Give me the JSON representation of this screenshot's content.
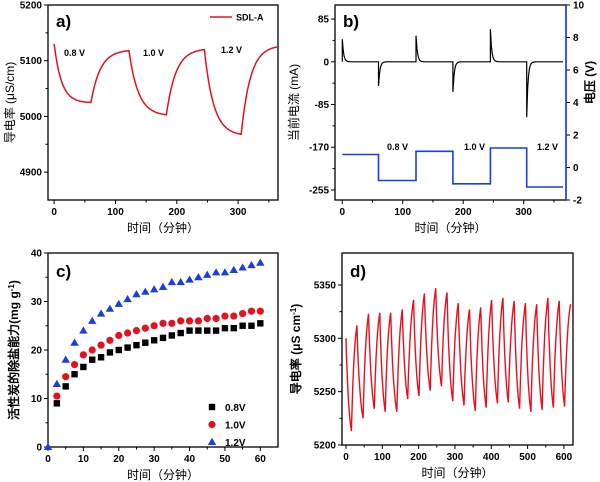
{
  "chart_data": [
    {
      "panel": "a)",
      "type": "line",
      "xlabel": "时间（分钟）",
      "ylabel": "导电率 (μS/cm)",
      "xlim": [
        -10,
        365
      ],
      "ylim": [
        4850,
        5200
      ],
      "xticks": [
        0,
        100,
        200,
        300
      ],
      "yticks": [
        4900,
        5000,
        5100,
        5200
      ],
      "legend": {
        "position": "top-right",
        "entries": [
          "SDL-A"
        ]
      },
      "annotations": [
        "0.8 V",
        "1.0 V",
        "1.2 V"
      ],
      "color": "#e8101e",
      "series": [
        {
          "name": "SDL-A",
          "segments": [
            {
              "t": [
                0,
                60
              ],
              "y": [
                5130,
                5025
              ]
            },
            {
              "t": [
                60,
                122
              ],
              "y": [
                5025,
                5118
              ]
            },
            {
              "t": [
                122,
                183
              ],
              "y": [
                5118,
                5003
              ]
            },
            {
              "t": [
                183,
                245
              ],
              "y": [
                5003,
                5120
              ]
            },
            {
              "t": [
                245,
                305
              ],
              "y": [
                5120,
                4968
              ]
            },
            {
              "t": [
                305,
                365
              ],
              "y": [
                4968,
                5125
              ]
            }
          ]
        }
      ]
    },
    {
      "panel": "b)",
      "type": "line",
      "xlabel": "时间（分钟）",
      "ylabel": "当前电流 (mA)",
      "y2label": "电压 (V)",
      "xlim": [
        -12,
        370
      ],
      "ylim": [
        -275,
        113
      ],
      "y2lim": [
        -2,
        10
      ],
      "xticks": [
        0,
        100,
        200,
        300
      ],
      "yticks": [
        -255,
        -170,
        -85,
        0,
        85
      ],
      "y2ticks": [
        -2,
        0,
        2,
        4,
        6,
        8,
        10
      ],
      "annotations": [
        "0.8 V",
        "1.0 V",
        "1.2 V"
      ],
      "current_color": "#000000",
      "voltage_color": "#1a3fe0",
      "current_spikes": [
        {
          "t": 0,
          "peak": 45
        },
        {
          "t": 60,
          "peak": -48
        },
        {
          "t": 122,
          "peak": 52
        },
        {
          "t": 183,
          "peak": -60
        },
        {
          "t": 245,
          "peak": 65
        },
        {
          "t": 305,
          "peak": -110
        }
      ],
      "voltage_steps": [
        {
          "t": [
            0,
            60
          ],
          "v": 0.8
        },
        {
          "t": [
            60,
            122
          ],
          "v": -0.8
        },
        {
          "t": [
            122,
            183
          ],
          "v": 1.0
        },
        {
          "t": [
            183,
            245
          ],
          "v": -1.0
        },
        {
          "t": [
            245,
            305
          ],
          "v": 1.2
        },
        {
          "t": [
            305,
            365
          ],
          "v": -1.2
        }
      ]
    },
    {
      "panel": "c)",
      "type": "scatter",
      "xlabel": "时间（分钟）",
      "ylabel": "活性炭的除盐能力(mg g-1)",
      "ylabel_main": "活性炭的除盐能力(mg g",
      "ylabel_sup": "-1",
      "ylabel_end": ")",
      "xlim": [
        0,
        65
      ],
      "ylim": [
        0,
        40
      ],
      "xticks": [
        0,
        10,
        20,
        30,
        40,
        50,
        60
      ],
      "yticks": [
        0,
        10,
        20,
        30,
        40
      ],
      "legend": {
        "position": "bottom-right"
      },
      "x": [
        2.5,
        5,
        7.5,
        10,
        12.5,
        15,
        17.5,
        20,
        22.5,
        25,
        27.5,
        30,
        32.5,
        35,
        37.5,
        40,
        42.5,
        45,
        47.5,
        50,
        52.5,
        55,
        57.5,
        60
      ],
      "series": [
        {
          "name": "0.8V",
          "marker": "square",
          "color": "#000000",
          "values": [
            9,
            12.5,
            15,
            16.5,
            18,
            18.5,
            19.5,
            20,
            20.5,
            21,
            21.5,
            22,
            22.5,
            23,
            23.5,
            24,
            24,
            24,
            24,
            24.5,
            24.5,
            25,
            25,
            25.5
          ]
        },
        {
          "name": "1.0V",
          "marker": "circle",
          "color": "#e8101e",
          "values": [
            10.5,
            14.5,
            17,
            19,
            20,
            21,
            22,
            23,
            23.5,
            24,
            24.5,
            25,
            25.5,
            25.5,
            26,
            26,
            26,
            26.5,
            26.5,
            27,
            27,
            27.5,
            28,
            28
          ]
        },
        {
          "name": "1.2V",
          "marker": "triangle",
          "color": "#1a3fe0",
          "values": [
            13,
            18,
            21.5,
            24,
            26,
            27.5,
            28.5,
            29.5,
            30.5,
            31.5,
            32,
            32.5,
            33,
            34,
            34,
            34.5,
            35,
            35.5,
            36,
            36,
            36.5,
            37,
            37.5,
            38
          ],
          "extra_point": [
            0,
            0
          ]
        }
      ]
    },
    {
      "panel": "d)",
      "type": "line",
      "xlabel": "时间（分钟）",
      "ylabel_main": "导电率 (μS cm",
      "ylabel_sup": "-1",
      "ylabel_end": ")",
      "xlim": [
        -11,
        625
      ],
      "ylim": [
        5200,
        5380
      ],
      "xticks": [
        0,
        100,
        200,
        300,
        400,
        500,
        600
      ],
      "yticks": [
        5200,
        5250,
        5300,
        5350
      ],
      "color": "#e8101e",
      "extrema": {
        "t": [
          0,
          15,
          30,
          47,
          62,
          78,
          93,
          108,
          123,
          140,
          155,
          170,
          186,
          201,
          216,
          232,
          247,
          263,
          278,
          294,
          309,
          325,
          340,
          356,
          371,
          386,
          401,
          417,
          432,
          447,
          463,
          478,
          494,
          509,
          525,
          540,
          556,
          571,
          587,
          602,
          618
        ],
        "y": [
          5300,
          5213,
          5312,
          5225,
          5323,
          5234,
          5324,
          5231,
          5324,
          5231,
          5327,
          5243,
          5336,
          5246,
          5342,
          5251,
          5347,
          5255,
          5343,
          5241,
          5333,
          5237,
          5327,
          5232,
          5329,
          5235,
          5336,
          5239,
          5338,
          5240,
          5335,
          5234,
          5333,
          5231,
          5332,
          5233,
          5338,
          5235,
          5335,
          5236,
          5332
        ]
      }
    }
  ]
}
